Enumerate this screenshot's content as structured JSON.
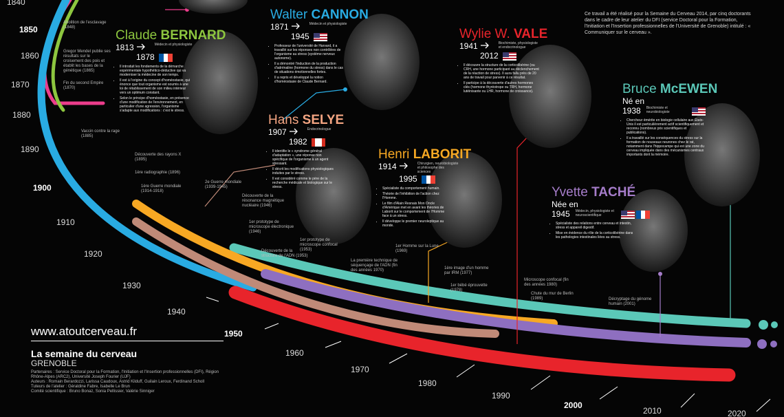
{
  "intro": "Ce travail a été réalisé pour la Semaine du Cerveau 2014, par cinq doctorants dans le cadre de leur atelier du DFI (service Doctoral pour la Formation, l'Initiation et l'Insertion professionnelles de l'Université de Grenoble) intitulé : « Communiquer sur le cerveau ».",
  "scientists": [
    {
      "first": "Claude",
      "last": "BERNARD",
      "color": "#8dc63f",
      "born": "1813",
      "died": "1878",
      "role": "Médecin et physiologiste",
      "bullets": [
        "Il introduit les fondements de la démarche expérimentale hypothético-déductive qui va moderniser la médecine de son temps.",
        "Il est à l'origine du concept d'homéostasie, qui énonce que tout organisme est soumis à une loi de rétablissement de son milieu intérieur vers un optimum constant.",
        "Selon le principe d'homéostasie, en présence d'une modification de l'environnement, en particulier d'une agression, l'organisme s'adapte aux modifications : c'est le stress."
      ]
    },
    {
      "first": "Walter",
      "last": "CANNON",
      "color": "#29abe2",
      "born": "1871",
      "died": "1945",
      "role": "Médecin et physiologiste",
      "bullets": [
        "Professeur de l'université de Harvard, il a travaillé sur les réponses non contrôlées de l'organisme au stress (système nerveux autonome).",
        "Il a démontré l'induction de la production d'adrénaline (hormone du stress) dans le cas de situations émotionnelles fortes.",
        "Il a repris et développé la notion d'homéostasie de Claude Bernard."
      ]
    },
    {
      "first": "Hans",
      "last": "SELYE",
      "color": "#f4a582",
      "born": "1907",
      "died": "1982",
      "role": "Endocrinologue",
      "bullets": [
        "Il identifie le « syndrome général d'adaptation », une réponse non spécifique de l'organisme à un agent stressant.",
        "Il décrit les modifications physiologiques induites par le stress.",
        "Il est considéré comme le père de la recherche médicale et biologique sur le stress."
      ]
    },
    {
      "first": "Henri",
      "last": "LABORIT",
      "color": "#f7a823",
      "born": "1914",
      "died": "1995",
      "role": "Chirurgien, neurobiologiste et philosophe des sciences",
      "bullets": [
        "Spécialiste du comportement humain.",
        "Théorie de l'inhibition de l'action chez l'Homme.",
        "Le film d'Alain Resnais Mon Oncle d'Amérique met en avant les théories de Laborit sur le comportement de l'Homme face à un stress.",
        "Il développe le premier neuroleptique au monde."
      ]
    },
    {
      "first": "Wylie W.",
      "last": "VALE",
      "color": "#e8242b",
      "born": "1941",
      "died": "2012",
      "role": "Biochimiste, physiologiste et endocrinologue",
      "bullets": [
        "Il découvre la structure de la corticolibérine (ou CRH, une hormone participant au déclenchement de la réaction de stress). Il aura fallu près de 20 ans de travail pour parvenir à ce résultat.",
        "Il participe à la découverte d'autres hormones clés (hormone thyréotrope ou TRH, hormone lutéinisante ou LHR, hormone de croissance)."
      ]
    },
    {
      "first": "Bruce",
      "last": "McEWEN",
      "color": "#5bc8b8",
      "born_prefix": "Né en",
      "born": "1938",
      "role": "Biochimiste et neurobiologiste",
      "bullets": [
        "Chercheur émérite en biologie cellulaire aux États-Unis il est particulièrement actif scientifiquement et reconnu (nombreux prix scientifiques et publications).",
        "Il a travaillé sur les conséquences du stress sur la formation de nouveaux neurones chez le rat, notamment dans l'hippocampe qui est une zone du cerveau impliquée dans des mécanismes centraux importants dont la mémoire."
      ]
    },
    {
      "first": "Yvette",
      "last": "TACHÉ",
      "color": "#a57cc9",
      "born_prefix": "Née en",
      "born": "1945",
      "role": "Médecin, physiologiste et neuroscientifique",
      "bullets": [
        "Spécialiste des relations entre cerveau et intestin, stress et appareil digestif.",
        "Mise en évidence du rôle de la corticolibérine dans les pathologies intestinales liées au stress."
      ]
    }
  ],
  "years": [
    "1840",
    "1850",
    "1860",
    "1870",
    "1880",
    "1890",
    "1900",
    "1910",
    "1920",
    "1930",
    "1940",
    "1950",
    "1960",
    "1970",
    "1980",
    "1990",
    "2000",
    "2010",
    "2020"
  ],
  "events": [
    "Abolition de l'esclavage (1848)",
    "Gregor Mendel publie ses résultats sur le croisement des pois et établit les bases de la génétique (1865)",
    "Fin du second Empire (1870)",
    "Vaccin contre la rage (1885)",
    "Découverte des rayons X (1895)",
    "1ère radiographie (1896)",
    "1ère Guerre mondiale (1914-1918)",
    "2e Guerre mondiale (1939-1945)",
    "Découverte de la résonance magnétique nucléaire (1946)",
    "1er prototype de microscope électronique (1946)",
    "1er prototype de microscope confocal (1953)",
    "Découverte de la structure de l'ADN (1953)",
    "1er Homme sur la Lune (1969)",
    "La première technique de séquençage de l'ADN (fin des années 1970)",
    "1ère image d'un homme par IRM (1977)",
    "1er bébé éprouvette (1978)",
    "Microscope confocal (fin des années 1980)",
    "Chute du mur de Berlin (1989)",
    "Décryptage du génome humain (2001)"
  ],
  "footer": {
    "url": "www.atoutcerveau.fr",
    "title": "La semaine du cerveau",
    "city": "GRENOBLE",
    "credits": [
      "Partenaires : Service Doctoral pour la Formation, l'Initiation et l'Insertion professionnelles (DFI), Région Rhône-Alpes (ARC2), Université Joseph Fourier (UJF)",
      "Auteurs : Romain Berardozzi, Larissa Caudoux, Astrid Kilduff, Guilain Leroux, Ferdinand Scholl",
      "Tuteurs de l'atelier : Géraldine Fabre, Isabelle Le Brun",
      "Comité scientifique : Bruno Bonaz, Sonia Pellissier, Valérie Sinniger"
    ]
  }
}
